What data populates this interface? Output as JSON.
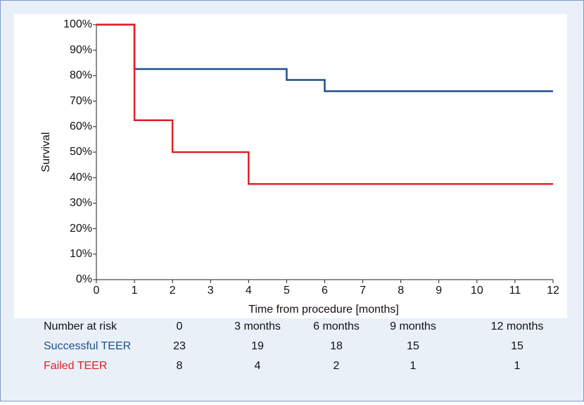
{
  "chart_data": {
    "type": "step",
    "x_label": "Time from procedure [months]",
    "y_label": "Survival",
    "xlim": [
      0,
      12
    ],
    "xticks": [
      0,
      1,
      2,
      3,
      4,
      5,
      6,
      7,
      8,
      9,
      10,
      11,
      12
    ],
    "ylim": [
      0,
      100
    ],
    "yticks": [
      {
        "value": 0,
        "label": "0%"
      },
      {
        "value": 10,
        "label": "10%"
      },
      {
        "value": 20,
        "label": "20%"
      },
      {
        "value": 30,
        "label": "30%"
      },
      {
        "value": 40,
        "label": "40%"
      },
      {
        "value": 50,
        "label": "50%"
      },
      {
        "value": 60,
        "label": "60%"
      },
      {
        "value": 70,
        "label": "70%"
      },
      {
        "value": 80,
        "label": "80%"
      },
      {
        "value": 90,
        "label": "90%"
      },
      {
        "value": 100,
        "label": "100%"
      }
    ],
    "series": [
      {
        "name": "Successful TEER",
        "color": "#1f4e8c",
        "x": [
          0,
          1,
          5,
          6,
          12
        ],
        "values": [
          100,
          82.6,
          78.3,
          73.9,
          73.9
        ]
      },
      {
        "name": "Failed TEER",
        "color": "#e0202a",
        "x": [
          0,
          1,
          2,
          4,
          12
        ],
        "values": [
          100,
          62.5,
          50,
          37.5,
          37.5
        ]
      }
    ],
    "risk_table": {
      "title": "Number at risk",
      "columns": [
        "0",
        "3 months",
        "6 months",
        "9 months",
        "12 months"
      ],
      "rows": [
        {
          "name": "Successful TEER",
          "color": "#1f4e8c",
          "values": [
            23,
            19,
            18,
            15,
            15
          ]
        },
        {
          "name": "Failed TEER",
          "color": "#e0202a",
          "values": [
            8,
            4,
            2,
            1,
            1
          ]
        }
      ]
    }
  }
}
